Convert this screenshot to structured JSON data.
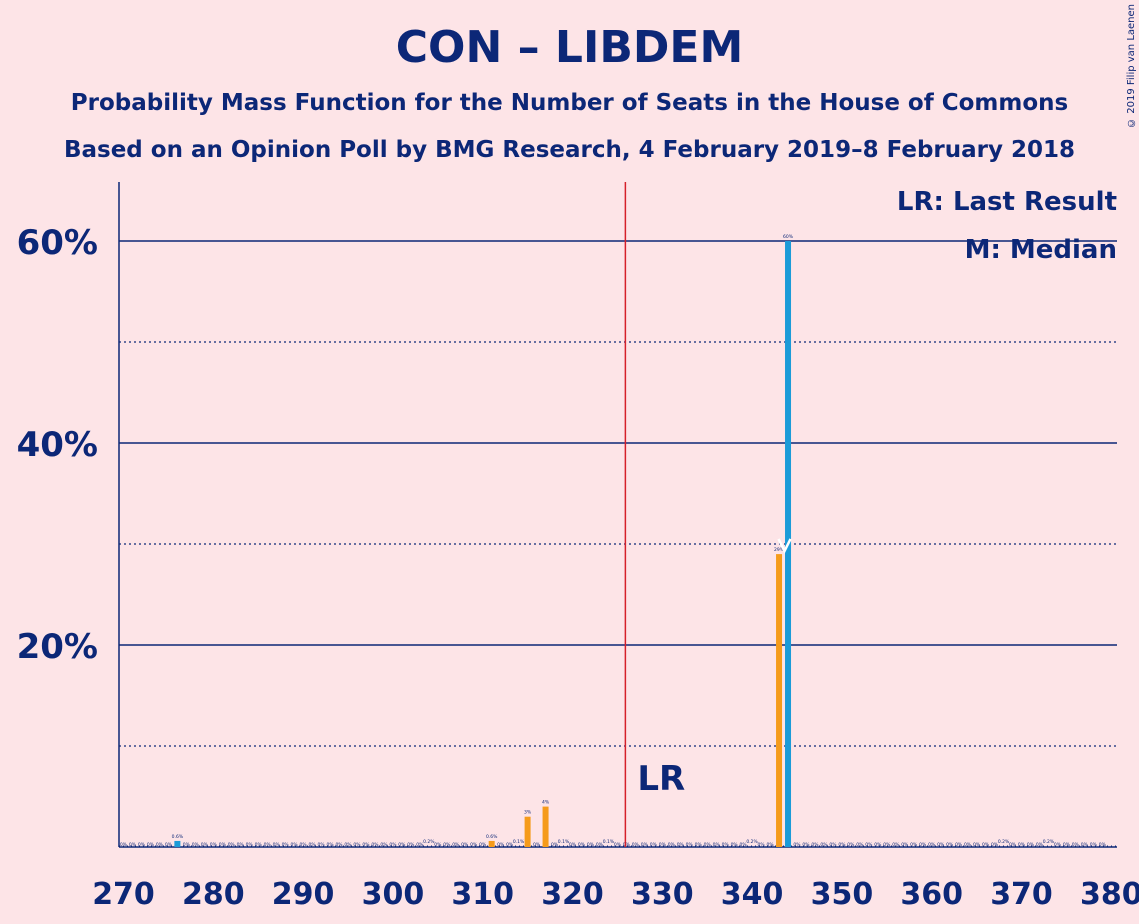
{
  "header": {
    "title": "CON – LIBDEM",
    "subtitle": "Probability Mass Function for the Number of Seats in the House of Commons",
    "source": "Based on an Opinion Poll by BMG Research, 4 February 2019–8 February 2018",
    "copyright": "© 2019 Filip van Laenen"
  },
  "colors": {
    "background": "#fde4e7",
    "text": "#0c2777",
    "con_bar": "#f59b1b",
    "libdem_bar": "#1b9bd8",
    "last_result_line": "#d5202a"
  },
  "chart_data": {
    "type": "bar",
    "title": "CON – LIBDEM",
    "subtitle": "Probability Mass Function for the Number of Seats in the House of Commons",
    "xlabel": "",
    "ylabel": "",
    "xlim": [
      270,
      380
    ],
    "ylim": [
      0,
      66
    ],
    "x_ticks": [
      270,
      280,
      290,
      300,
      310,
      320,
      330,
      340,
      350,
      360,
      370,
      380
    ],
    "y_ticks_major": [
      20,
      40,
      60
    ],
    "y_tick_labels": [
      "20%",
      "40%",
      "60%"
    ],
    "y_ticks_minor": [
      10,
      30,
      50
    ],
    "grid": true,
    "legend_position": "top-right",
    "legend": [
      "LR: Last Result",
      "M: Median"
    ],
    "last_result": {
      "seats": 326,
      "label": "LR"
    },
    "median": {
      "seats": 344,
      "label": "M"
    },
    "zero_label": "0%",
    "series": [
      {
        "name": "CON",
        "bars": [
          {
            "seats": 311,
            "value": 0.6,
            "label": "0.6%"
          },
          {
            "seats": 315,
            "value": 3,
            "label": "3%"
          },
          {
            "seats": 317,
            "value": 4,
            "label": "4%"
          },
          {
            "seats": 343,
            "value": 29,
            "label": "29%"
          }
        ]
      },
      {
        "name": "LIBDEM",
        "bars": [
          {
            "seats": 276,
            "value": 0.6,
            "label": "0.6%"
          },
          {
            "seats": 344,
            "value": 60,
            "label": "60%"
          }
        ]
      }
    ],
    "small_labels": [
      {
        "seats": 304,
        "label": "0.2%"
      },
      {
        "seats": 314,
        "label": "0.1%"
      },
      {
        "seats": 319,
        "label": "0.1%"
      },
      {
        "seats": 324,
        "label": "0.1%"
      },
      {
        "seats": 340,
        "label": "0.2%"
      },
      {
        "seats": 368,
        "label": "0.2%"
      },
      {
        "seats": 373,
        "label": "0.2%"
      }
    ]
  }
}
